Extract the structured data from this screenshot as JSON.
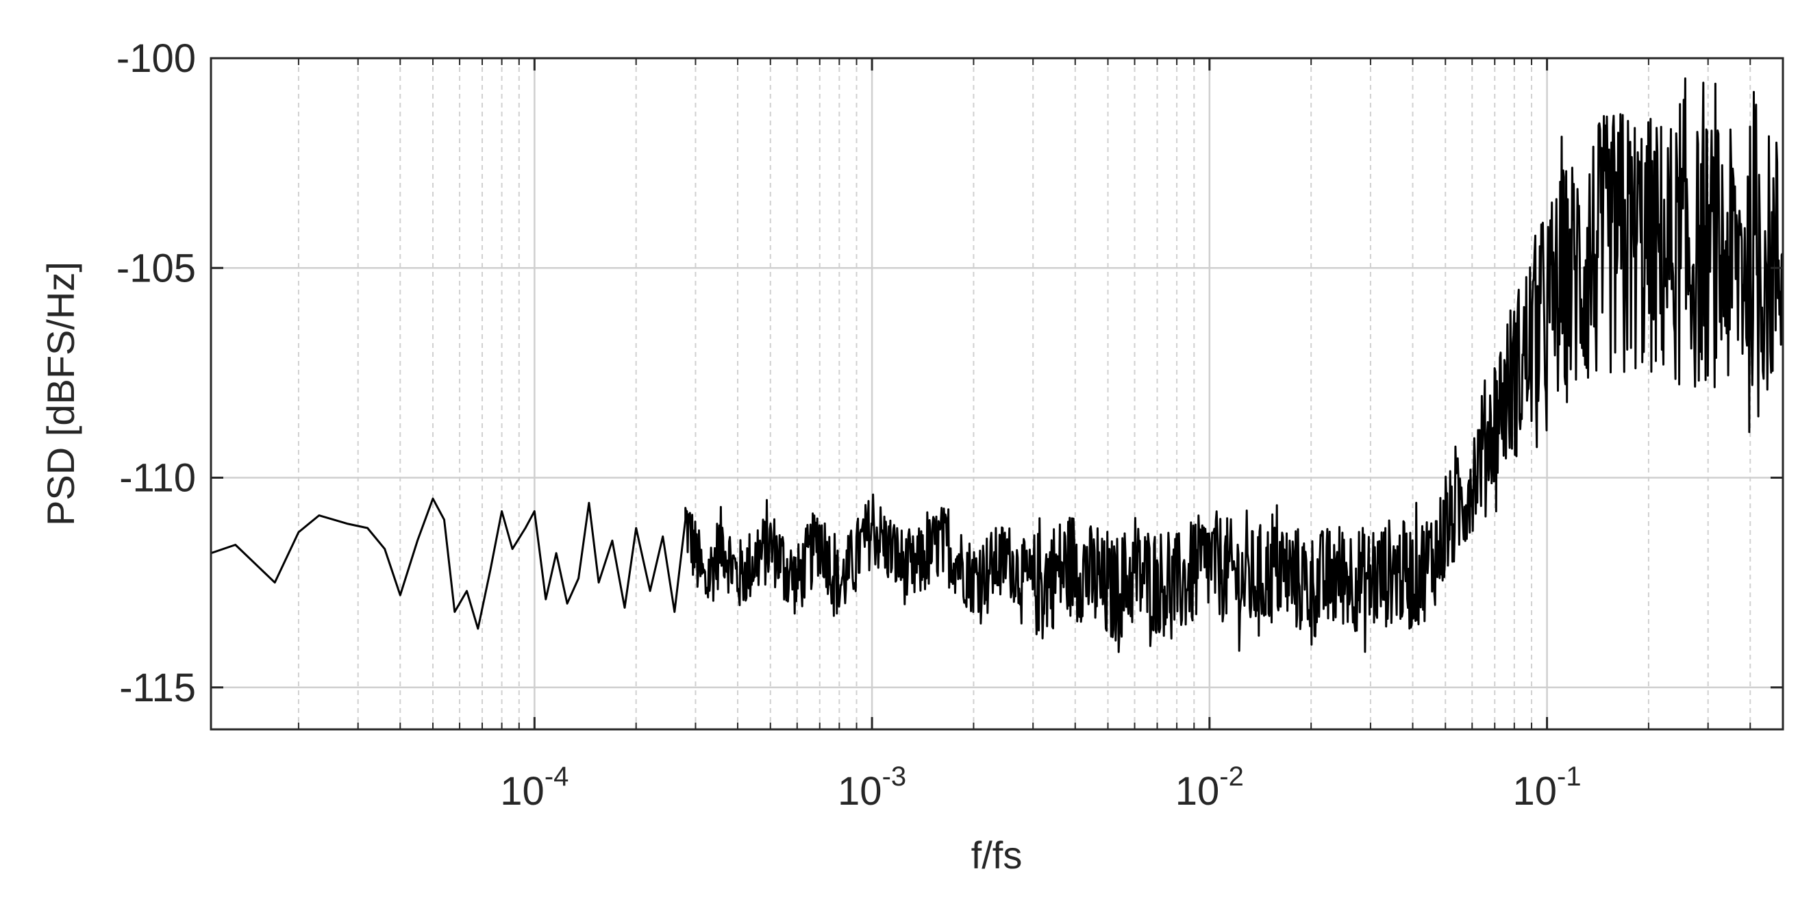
{
  "chart_data": {
    "type": "line",
    "title": "",
    "xlabel": "f/fs",
    "ylabel": "PSD [dBFS/Hz]",
    "xscale": "log",
    "xlim": [
      1.1e-05,
      0.5
    ],
    "ylim": [
      -116,
      -100
    ],
    "grid": true,
    "minor_grid": true,
    "legend": "none",
    "x_ticks": [
      {
        "value": 0.0001,
        "base": "10",
        "exp": "-4"
      },
      {
        "value": 0.001,
        "base": "10",
        "exp": "-3"
      },
      {
        "value": 0.01,
        "base": "10",
        "exp": "-2"
      },
      {
        "value": 0.1,
        "base": "10",
        "exp": "-1"
      }
    ],
    "y_ticks": [
      {
        "value": -100,
        "label": "-100"
      },
      {
        "value": -105,
        "label": "-105"
      },
      {
        "value": -110,
        "label": "-110"
      },
      {
        "value": -115,
        "label": "-115"
      }
    ],
    "series": [
      {
        "color": "#000000",
        "x": [
          1.1e-05,
          1.3e-05,
          1.7e-05,
          2e-05,
          2.3e-05,
          2.8e-05,
          3.2e-05,
          3.6e-05,
          4e-05,
          4.5e-05,
          5e-05,
          5.4e-05,
          5.8e-05,
          6.3e-05,
          6.8e-05,
          7.4e-05,
          8e-05,
          8.6e-05,
          9.4e-05,
          0.0001,
          0.000108,
          0.000116,
          0.000125,
          0.000135,
          0.000145,
          0.000155,
          0.00017,
          0.000185,
          0.0002,
          0.00022,
          0.00024,
          0.00026,
          0.00028,
          0.00032,
          0.00036,
          0.0004,
          0.0005,
          0.0006,
          0.0007,
          0.0008,
          0.001,
          0.0013,
          0.0016,
          0.002,
          0.0025,
          0.003,
          0.004,
          0.005,
          0.006,
          0.008,
          0.01,
          0.013,
          0.016,
          0.02,
          0.025,
          0.03,
          0.035,
          0.04,
          0.045,
          0.05,
          0.055,
          0.06,
          0.065,
          0.07,
          0.075,
          0.08,
          0.085,
          0.09,
          0.1,
          0.11,
          0.12,
          0.135,
          0.15,
          0.17,
          0.2,
          0.23,
          0.27,
          0.3,
          0.35,
          0.4,
          0.45,
          0.5
        ],
        "y": [
          -111.8,
          -111.6,
          -112.5,
          -111.3,
          -110.9,
          -111.1,
          -111.2,
          -111.7,
          -112.8,
          -111.5,
          -110.5,
          -111.0,
          -113.2,
          -112.7,
          -113.6,
          -112.2,
          -110.8,
          -111.7,
          -111.2,
          -110.8,
          -112.9,
          -111.8,
          -113.0,
          -112.4,
          -110.6,
          -112.5,
          -111.5,
          -113.1,
          -111.2,
          -112.7,
          -111.4,
          -113.2,
          -111.0,
          -112.6,
          -111.5,
          -112.4,
          -111.6,
          -112.5,
          -111.4,
          -112.6,
          -111.2,
          -112.3,
          -111.5,
          -112.4,
          -111.9,
          -112.6,
          -112.0,
          -112.8,
          -112.3,
          -112.6,
          -112.0,
          -112.5,
          -112.2,
          -112.6,
          -112.3,
          -112.5,
          -112.2,
          -112.4,
          -112.0,
          -111.3,
          -110.7,
          -110.0,
          -109.2,
          -108.6,
          -108.0,
          -107.6,
          -107.2,
          -106.7,
          -106.0,
          -105.5,
          -105.2,
          -104.8,
          -104.5,
          -104.3,
          -104.5,
          -104.6,
          -104.8,
          -104.6,
          -104.9,
          -104.7,
          -104.9,
          -104.8
        ]
      }
    ]
  }
}
